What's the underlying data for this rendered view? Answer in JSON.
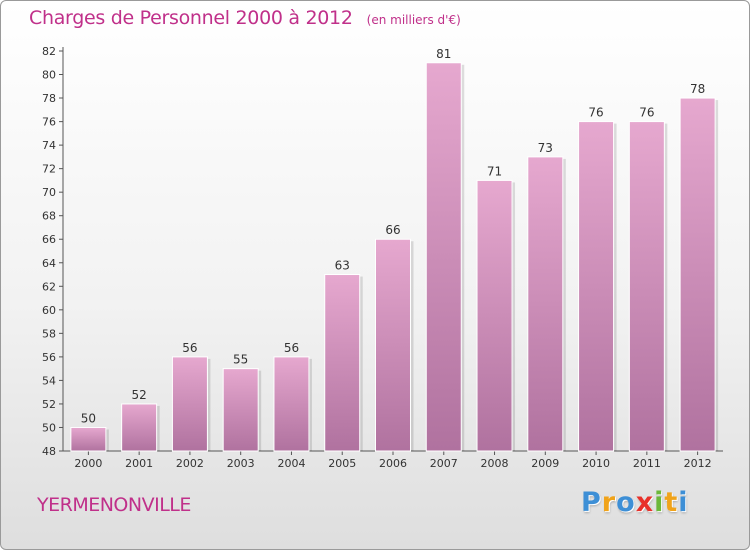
{
  "chart_data": {
    "type": "bar",
    "title": "Charges de Personnel 2000 à 2012",
    "unit_label": "(en milliers d'€)",
    "categories": [
      "2000",
      "2001",
      "2002",
      "2003",
      "2004",
      "2005",
      "2006",
      "2007",
      "2008",
      "2009",
      "2010",
      "2011",
      "2012"
    ],
    "values": [
      50,
      52,
      56,
      55,
      56,
      63,
      66,
      81,
      71,
      73,
      76,
      76,
      78
    ],
    "ylim": [
      48,
      82
    ],
    "yticks": [
      48,
      50,
      52,
      54,
      56,
      58,
      60,
      62,
      64,
      66,
      68,
      70,
      72,
      74,
      76,
      78,
      80,
      82
    ],
    "grid": false,
    "colors": {
      "bar_top": "#e6a8cf",
      "bar_bottom": "#b0729f",
      "title": "#c0308a"
    }
  },
  "commune_name": "YERMENONVILLE",
  "logo": {
    "letters": [
      "P",
      "r",
      "o",
      "x",
      "i",
      "t",
      "i"
    ],
    "colors": [
      "#3d8fd6",
      "#f0a31a",
      "#3d8fd6",
      "#e8312a",
      "#6cb83a",
      "#f0a31a",
      "#3d8fd6"
    ]
  }
}
